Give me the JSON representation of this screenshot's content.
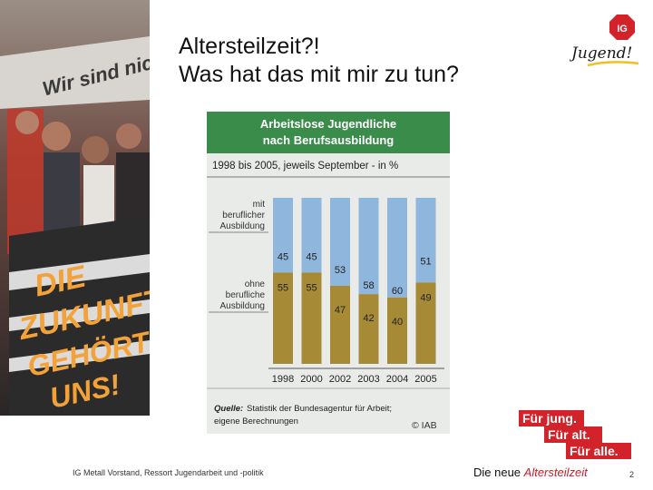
{
  "title": {
    "line1": "Altersteilzeit?!",
    "line2": "Was hat das mit mir zu tun?"
  },
  "logo": {
    "emblem": "IG",
    "script": "Jugend!"
  },
  "photo": {
    "banner_text": "Wir sind nicht",
    "sign_lines": [
      "DIE",
      "ZUKUNFT",
      "GEHÖRT",
      "UNS!"
    ]
  },
  "chart_data": {
    "type": "bar",
    "stacked": true,
    "title": "Arbeitslose Jugendliche nach Berufsausbildung",
    "title_lines": [
      "Arbeitslose Jugendliche",
      "nach Berufsausbildung"
    ],
    "subtitle": "1998 bis 2005, jeweils September -  in %",
    "categories": [
      "1998",
      "2000",
      "2002",
      "2003",
      "2004",
      "2005"
    ],
    "series": [
      {
        "name": "mit beruflicher Ausbildung",
        "label_lines": [
          "mit",
          "beruflicher",
          "Ausbildung"
        ],
        "values": [
          45,
          45,
          53,
          58,
          60,
          51
        ],
        "color": "#8fb6dc"
      },
      {
        "name": "ohne berufliche Ausbildung",
        "label_lines": [
          "ohne",
          "berufliche",
          "Ausbildung"
        ],
        "values": [
          55,
          55,
          47,
          42,
          40,
          49
        ],
        "color": "#a68a35"
      }
    ],
    "ylim": [
      0,
      100
    ],
    "grid": false,
    "header_color": "#3a8c4a",
    "panel_color": "#e9ebe9",
    "source_label": "Quelle:",
    "source_text": "Statistik der Bundesagentur für Arbeit;",
    "source_text2": "eigene Berechnungen",
    "credit": "© IAB"
  },
  "slogan": [
    "Für jung.",
    "Für alt.",
    "Für alle."
  ],
  "slogan_color": "#d2232a",
  "footer": {
    "left": "IG Metall Vorstand, Ressort Jugendarbeit und -politik",
    "right_prefix": "Die neue ",
    "right_accent": "Altersteilzeit",
    "page": "2"
  }
}
